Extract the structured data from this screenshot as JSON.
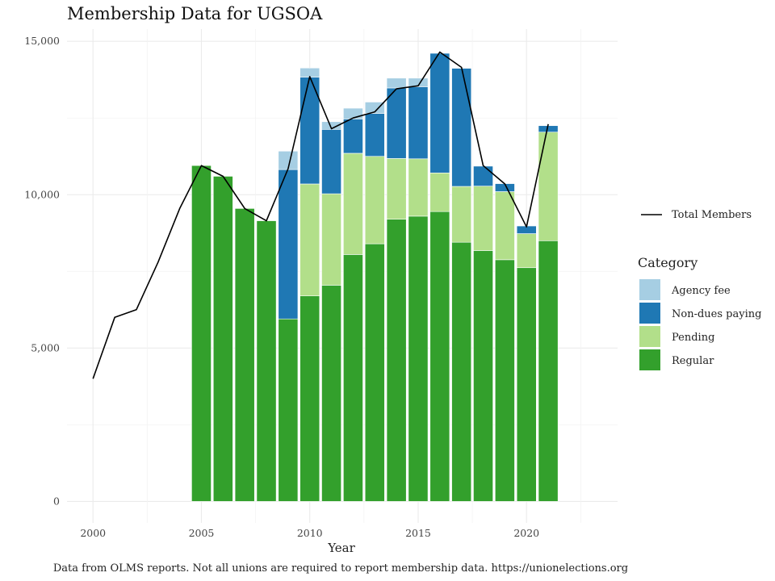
{
  "chart_data": {
    "type": "bar",
    "title": "Membership Data for UGSOA",
    "xlabel": "Year",
    "ylabel": "",
    "caption": "Data from OLMS reports. Not all unions are required to report membership data. https://unionelections.org",
    "xlim": [
      1998.8,
      2024.2
    ],
    "ylim": [
      -700,
      15400
    ],
    "x_ticks": [
      2000,
      2005,
      2010,
      2015,
      2020
    ],
    "x_tick_labels": [
      "2000",
      "2005",
      "2010",
      "2015",
      "2020"
    ],
    "y_ticks": [
      0,
      5000,
      10000,
      15000
    ],
    "y_tick_labels": [
      "0",
      "5,000",
      "10,000",
      "15,000"
    ],
    "grid": true,
    "stacked": true,
    "legend_title": "Category",
    "legend_position": "right",
    "years": [
      2005,
      2006,
      2007,
      2008,
      2009,
      2010,
      2011,
      2012,
      2013,
      2014,
      2015,
      2016,
      2017,
      2018,
      2019,
      2020,
      2021
    ],
    "series": [
      {
        "name": "Regular",
        "color": "#33a02c",
        "values": [
          10950,
          10600,
          9550,
          9150,
          5950,
          6700,
          7050,
          8050,
          8400,
          9200,
          9300,
          9450,
          8450,
          8180,
          7880,
          7620,
          8500
        ]
      },
      {
        "name": "Pending",
        "color": "#b2df8a",
        "values": [
          0,
          0,
          0,
          0,
          0,
          3650,
          2980,
          3300,
          2850,
          1980,
          1870,
          1260,
          1820,
          2100,
          2220,
          1110,
          3540
        ]
      },
      {
        "name": "Non-dues paying",
        "color": "#1f78b4",
        "values": [
          0,
          0,
          0,
          0,
          4870,
          3480,
          2100,
          1120,
          1400,
          2300,
          2350,
          3900,
          3850,
          650,
          260,
          250,
          210
        ]
      },
      {
        "name": "Agency fee",
        "color": "#a6cee3",
        "values": [
          0,
          0,
          0,
          0,
          600,
          300,
          250,
          350,
          370,
          320,
          280,
          0,
          0,
          0,
          0,
          0,
          0
        ]
      }
    ],
    "legend_order": [
      "Agency fee",
      "Non-dues paying",
      "Pending",
      "Regular"
    ],
    "line": {
      "name": "Total Members",
      "color": "#000000",
      "x": [
        2000,
        2001,
        2002,
        2003,
        2004,
        2005,
        2006,
        2007,
        2008,
        2009,
        2010,
        2011,
        2012,
        2013,
        2014,
        2015,
        2016,
        2017,
        2018,
        2019,
        2020,
        2021
      ],
      "y": [
        4000,
        6000,
        6250,
        7800,
        9550,
        10950,
        10600,
        9550,
        9150,
        10850,
        13850,
        12150,
        12500,
        12700,
        13450,
        13550,
        14650,
        14150,
        10950,
        10350,
        8950,
        12300
      ]
    }
  }
}
